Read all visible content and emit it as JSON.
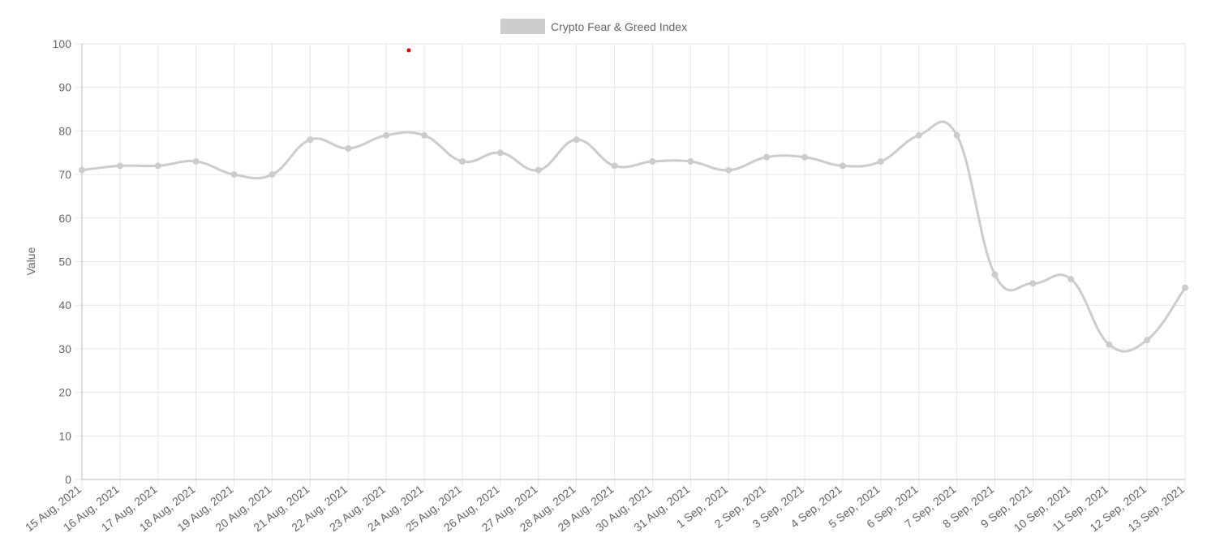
{
  "chart_data": {
    "type": "line",
    "legend": "top",
    "y_label": "Value",
    "categories": [
      "15 Aug, 2021",
      "16 Aug, 2021",
      "17 Aug, 2021",
      "18 Aug, 2021",
      "19 Aug, 2021",
      "20 Aug, 2021",
      "21 Aug, 2021",
      "22 Aug, 2021",
      "23 Aug, 2021",
      "24 Aug, 2021",
      "25 Aug, 2021",
      "26 Aug, 2021",
      "27 Aug, 2021",
      "28 Aug, 2021",
      "29 Aug, 2021",
      "30 Aug, 2021",
      "31 Aug, 2021",
      "1 Sep, 2021",
      "2 Sep, 2021",
      "3 Sep, 2021",
      "4 Sep, 2021",
      "5 Sep, 2021",
      "6 Sep, 2021",
      "7 Sep, 2021",
      "8 Sep, 2021",
      "9 Sep, 2021",
      "10 Sep, 2021",
      "11 Sep, 2021",
      "12 Sep, 2021",
      "13 Sep, 2021"
    ],
    "series": [
      {
        "name": "Crypto Fear & Greed Index",
        "color": "#cccccc",
        "values": [
          71,
          72,
          72,
          73,
          70,
          70,
          78,
          76,
          79,
          79,
          73,
          75,
          71,
          78,
          72,
          73,
          73,
          71,
          74,
          74,
          72,
          73,
          79,
          79,
          47,
          45,
          46,
          31,
          32,
          44
        ]
      }
    ],
    "ylim": [
      0,
      100
    ],
    "yticks": [
      0,
      10,
      20,
      30,
      40,
      50,
      60,
      70,
      80,
      90,
      100
    ],
    "grid": true
  }
}
